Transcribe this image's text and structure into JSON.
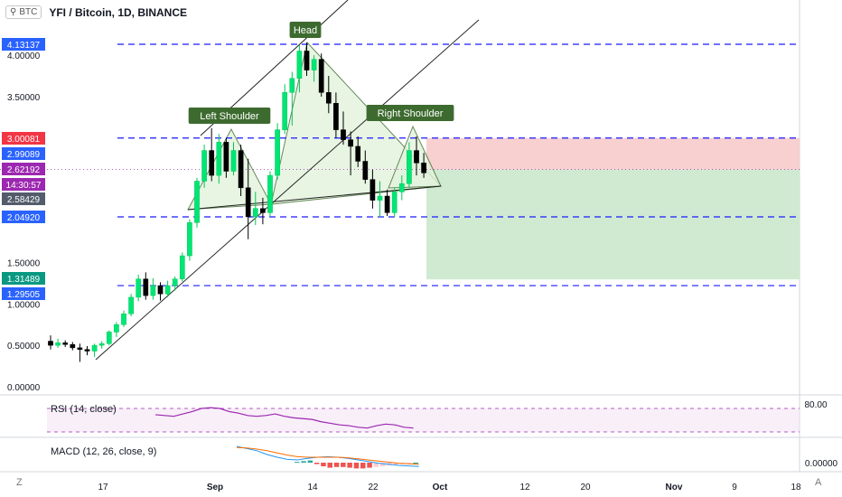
{
  "header": {
    "symbol_badge": "BTC",
    "title": "YFI / Bitcoin, 1D, BINANCE"
  },
  "footer": {
    "left_badge": "Z",
    "right_badge": "A"
  },
  "chart_data": [
    {
      "type": "candlestick",
      "title": "YFI / Bitcoin, 1D, BINANCE",
      "ylim": [
        0.0,
        4.3
      ],
      "y_ticks": [
        "4.00000",
        "3.50000",
        "1.50000",
        "1.00000",
        "0.50000",
        "0.00000"
      ],
      "x_ticks": [
        "17",
        "Sep",
        "14",
        "22",
        "Oct",
        "12",
        "20",
        "Nov",
        "9",
        "18"
      ],
      "candles": [
        [
          0.55,
          0.62,
          0.45,
          0.5
        ],
        [
          0.5,
          0.58,
          0.47,
          0.53
        ],
        [
          0.53,
          0.56,
          0.48,
          0.51
        ],
        [
          0.51,
          0.54,
          0.44,
          0.47
        ],
        [
          0.47,
          0.52,
          0.3,
          0.45
        ],
        [
          0.45,
          0.49,
          0.38,
          0.43
        ],
        [
          0.43,
          0.52,
          0.36,
          0.5
        ],
        [
          0.5,
          0.55,
          0.46,
          0.52
        ],
        [
          0.52,
          0.68,
          0.5,
          0.66
        ],
        [
          0.66,
          0.78,
          0.6,
          0.75
        ],
        [
          0.75,
          0.92,
          0.72,
          0.88
        ],
        [
          0.88,
          1.12,
          0.85,
          1.08
        ],
        [
          1.08,
          1.35,
          1.03,
          1.3
        ],
        [
          1.3,
          1.38,
          1.05,
          1.1
        ],
        [
          1.1,
          1.31,
          1.05,
          1.22
        ],
        [
          1.22,
          1.26,
          1.04,
          1.12
        ],
        [
          1.12,
          1.28,
          1.08,
          1.22
        ],
        [
          1.22,
          1.33,
          1.16,
          1.3
        ],
        [
          1.3,
          1.62,
          1.27,
          1.58
        ],
        [
          1.58,
          2.02,
          1.52,
          1.98
        ],
        [
          1.98,
          2.52,
          1.92,
          2.48
        ],
        [
          2.48,
          2.92,
          2.4,
          2.85
        ],
        [
          2.85,
          3.12,
          2.48,
          2.55
        ],
        [
          2.55,
          3.05,
          2.45,
          2.95
        ],
        [
          2.95,
          3.0,
          2.52,
          2.6
        ],
        [
          2.6,
          2.95,
          2.55,
          2.85
        ],
        [
          2.85,
          2.92,
          2.3,
          2.4
        ],
        [
          2.4,
          2.75,
          1.78,
          2.05
        ],
        [
          2.05,
          2.35,
          1.95,
          2.15
        ],
        [
          2.15,
          2.28,
          1.96,
          2.1
        ],
        [
          2.1,
          2.6,
          2.05,
          2.55
        ],
        [
          2.55,
          3.18,
          2.5,
          3.1
        ],
        [
          3.1,
          3.65,
          3.05,
          3.55
        ],
        [
          3.55,
          3.8,
          3.15,
          3.72
        ],
        [
          3.72,
          4.12,
          3.55,
          4.05
        ],
        [
          4.05,
          4.15,
          3.75,
          3.82
        ],
        [
          3.82,
          4.0,
          3.68,
          3.95
        ],
        [
          3.95,
          4.02,
          3.5,
          3.55
        ],
        [
          3.55,
          3.75,
          3.3,
          3.42
        ],
        [
          3.42,
          3.55,
          3.0,
          3.1
        ],
        [
          3.1,
          3.32,
          2.92,
          2.98
        ],
        [
          2.98,
          3.08,
          2.55,
          2.9
        ],
        [
          2.9,
          3.02,
          2.65,
          2.72
        ],
        [
          2.72,
          2.85,
          2.45,
          2.5
        ],
        [
          2.5,
          2.62,
          2.15,
          2.25
        ],
        [
          2.25,
          2.48,
          2.05,
          2.3
        ],
        [
          2.3,
          2.38,
          2.06,
          2.1
        ],
        [
          2.1,
          2.4,
          2.05,
          2.35
        ],
        [
          2.35,
          2.55,
          2.25,
          2.45
        ],
        [
          2.45,
          2.95,
          2.4,
          2.85
        ],
        [
          2.85,
          3.02,
          2.55,
          2.7
        ],
        [
          2.7,
          2.82,
          2.52,
          2.58
        ]
      ],
      "horizontal_levels": [
        {
          "label": "4.13137",
          "value": 4.13137,
          "line": true,
          "badge_color": "#2962ff"
        },
        {
          "label": "3.00081",
          "value": 3.00081,
          "line": true,
          "badge_color": "#f23645"
        },
        {
          "label": "2.99089",
          "value": 2.99089,
          "line": false,
          "badge_color": "#2962ff"
        },
        {
          "label": "2.62192",
          "value": 2.62192,
          "line": false,
          "badge_color": "#9c27b0"
        },
        {
          "label": "14:30:57",
          "value": 2.44,
          "line": false,
          "badge_color": "#9c27b0"
        },
        {
          "label": "2.58429",
          "value": 2.29,
          "line": false,
          "badge_color": "#525c6b"
        },
        {
          "label": "2.04920",
          "value": 2.0492,
          "line": true,
          "badge_color": "#2962ff"
        },
        {
          "label": "1.31489",
          "value": 1.35,
          "line": false,
          "badge_color": "#089981"
        },
        {
          "label": "1.29505",
          "value": 1.22,
          "line": true,
          "badge_color": "#2962ff"
        }
      ],
      "annotations": [
        {
          "text": "Head",
          "color": "#3d6b2f"
        },
        {
          "text": "Left Shoulder",
          "color": "#3d6b2f"
        },
        {
          "text": "Right Shoulder",
          "color": "#3d6b2f"
        }
      ],
      "position_zone": {
        "entry": 2.62192,
        "stop": 3.00081,
        "target": 1.29505,
        "stop_color": "#f7c8c8",
        "target_color": "#c8e6c9"
      },
      "colors": {
        "up": "#00e676",
        "down": "#000000",
        "level": "#1a1aff"
      }
    },
    {
      "type": "line",
      "title": "RSI (14, close)",
      "tick_labels": [
        "80.00"
      ],
      "series": [
        {
          "values": [
            72,
            71,
            70,
            73,
            76,
            80,
            81,
            80,
            76,
            74,
            71,
            70,
            71,
            73,
            70,
            68,
            67,
            66,
            63,
            61,
            59,
            58,
            56,
            55,
            58,
            60,
            59,
            56,
            55
          ],
          "color": "#9c27b0"
        }
      ]
    },
    {
      "type": "line",
      "title": "MACD (12, 26, close, 9)",
      "tick_labels": [
        "0.00000"
      ],
      "series": [
        {
          "name": "MACD",
          "values": [
            0.3,
            0.26,
            0.22,
            0.15,
            0.1,
            0.06,
            0.05,
            0.08,
            0.1,
            0.11,
            0.1,
            0.08,
            0.05,
            0.02,
            -0.01,
            -0.03,
            -0.05,
            -0.06,
            -0.07
          ],
          "color": "#2196f3"
        },
        {
          "name": "Signal",
          "values": [
            0.28,
            0.27,
            0.25,
            0.22,
            0.18,
            0.14,
            0.11,
            0.1,
            0.1,
            0.1,
            0.1,
            0.09,
            0.07,
            0.05,
            0.03,
            0.01,
            -0.01,
            -0.02,
            -0.03
          ],
          "color": "#ff6d00"
        }
      ],
      "histogram": [
        0.01,
        0.02,
        0.03,
        -0.02,
        -0.05,
        -0.07,
        -0.06,
        -0.06,
        -0.07,
        -0.08,
        -0.08,
        -0.07,
        -0.06,
        -0.05,
        -0.04,
        -0.03,
        -0.02,
        -0.01,
        0.0
      ]
    }
  ]
}
